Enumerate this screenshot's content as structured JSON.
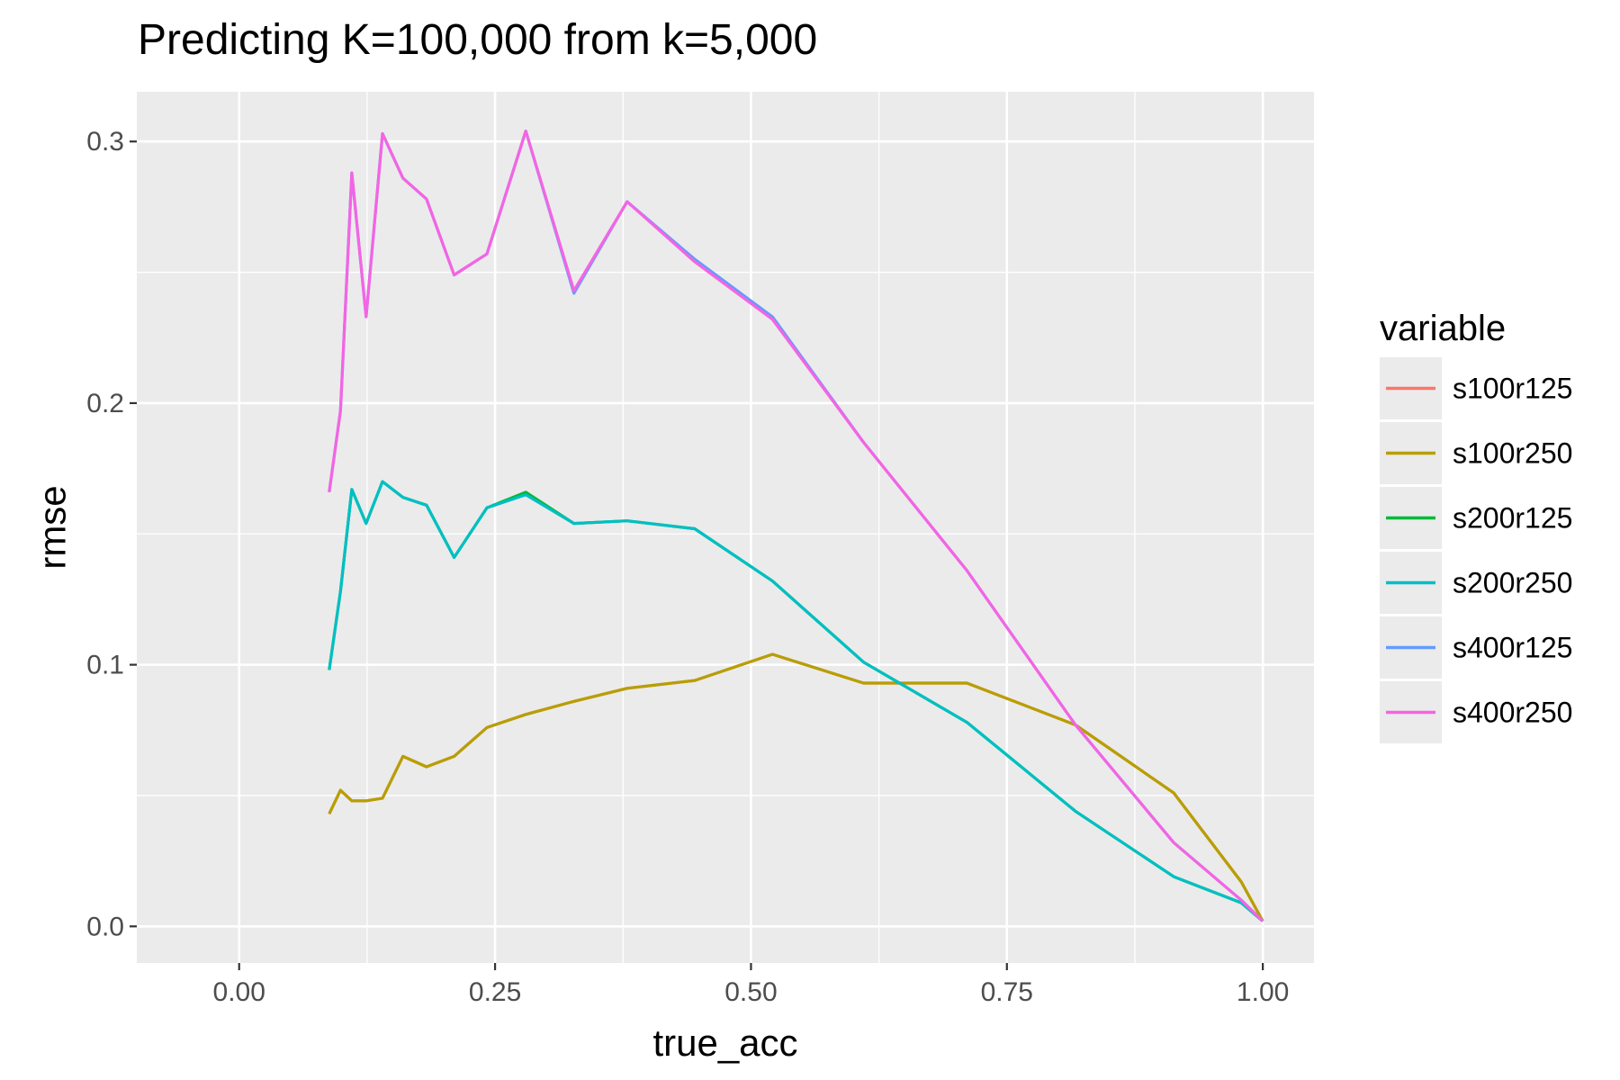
{
  "chart_data": {
    "type": "line",
    "title": "Predicting K=100,000 from k=5,000",
    "xlabel": "true_acc",
    "ylabel": "rmse",
    "xlim": [
      -0.1,
      1.05
    ],
    "ylim": [
      -0.014,
      0.319
    ],
    "x_ticks": [
      0.0,
      0.25,
      0.5,
      0.75,
      1.0
    ],
    "x_tick_labels": [
      "0.00",
      "0.25",
      "0.50",
      "0.75",
      "1.00"
    ],
    "y_ticks": [
      0.0,
      0.1,
      0.2,
      0.3
    ],
    "y_tick_labels": [
      "0.0",
      "0.1",
      "0.2",
      "0.3"
    ],
    "grid": true,
    "legend": {
      "title": "variable",
      "position": "right"
    },
    "series": [
      {
        "name": "s100r125",
        "color": "#F8766D",
        "x": [
          0.088,
          0.099,
          0.11,
          0.124,
          0.14,
          0.16,
          0.183,
          0.21,
          0.242,
          0.28,
          0.327,
          0.379,
          0.445,
          0.521,
          0.61,
          0.711,
          0.817,
          0.913,
          0.979,
          1.0
        ],
        "y": [
          0.043,
          0.052,
          0.048,
          0.048,
          0.049,
          0.065,
          0.061,
          0.065,
          0.076,
          0.081,
          0.086,
          0.091,
          0.094,
          0.104,
          0.093,
          0.093,
          0.077,
          0.051,
          0.017,
          0.002
        ]
      },
      {
        "name": "s100r250",
        "color": "#B79F00",
        "x": [
          0.088,
          0.099,
          0.11,
          0.124,
          0.14,
          0.16,
          0.183,
          0.21,
          0.242,
          0.28,
          0.327,
          0.379,
          0.445,
          0.521,
          0.61,
          0.711,
          0.817,
          0.913,
          0.979,
          1.0
        ],
        "y": [
          0.043,
          0.052,
          0.048,
          0.048,
          0.049,
          0.065,
          0.061,
          0.065,
          0.076,
          0.081,
          0.086,
          0.091,
          0.094,
          0.104,
          0.093,
          0.093,
          0.077,
          0.051,
          0.017,
          0.002
        ]
      },
      {
        "name": "s200r125",
        "color": "#00BA38",
        "x": [
          0.088,
          0.099,
          0.11,
          0.124,
          0.14,
          0.16,
          0.183,
          0.21,
          0.242,
          0.28,
          0.327,
          0.379,
          0.445,
          0.521,
          0.61,
          0.711,
          0.817,
          0.913,
          0.979,
          1.0
        ],
        "y": [
          0.098,
          0.128,
          0.167,
          0.154,
          0.17,
          0.164,
          0.161,
          0.141,
          0.16,
          0.166,
          0.154,
          0.155,
          0.152,
          0.132,
          0.101,
          0.078,
          0.044,
          0.019,
          0.009,
          0.002
        ]
      },
      {
        "name": "s200r250",
        "color": "#00BFC4",
        "x": [
          0.088,
          0.099,
          0.11,
          0.124,
          0.14,
          0.16,
          0.183,
          0.21,
          0.242,
          0.28,
          0.327,
          0.379,
          0.445,
          0.521,
          0.61,
          0.711,
          0.817,
          0.913,
          0.979,
          1.0
        ],
        "y": [
          0.098,
          0.128,
          0.167,
          0.154,
          0.17,
          0.164,
          0.161,
          0.141,
          0.16,
          0.165,
          0.154,
          0.155,
          0.152,
          0.132,
          0.101,
          0.078,
          0.044,
          0.019,
          0.009,
          0.002
        ]
      },
      {
        "name": "s400r125",
        "color": "#619CFF",
        "x": [
          0.088,
          0.099,
          0.11,
          0.124,
          0.14,
          0.16,
          0.183,
          0.21,
          0.242,
          0.28,
          0.327,
          0.379,
          0.445,
          0.521,
          0.61,
          0.711,
          0.817,
          0.913,
          0.979,
          1.0
        ],
        "y": [
          0.166,
          0.197,
          0.288,
          0.233,
          0.303,
          0.286,
          0.278,
          0.249,
          0.257,
          0.304,
          0.242,
          0.277,
          0.255,
          0.233,
          0.185,
          0.136,
          0.077,
          0.032,
          0.01,
          0.002
        ]
      },
      {
        "name": "s400r250",
        "color": "#F564E3",
        "x": [
          0.088,
          0.099,
          0.11,
          0.124,
          0.14,
          0.16,
          0.183,
          0.21,
          0.242,
          0.28,
          0.327,
          0.379,
          0.445,
          0.521,
          0.61,
          0.711,
          0.817,
          0.913,
          0.979,
          1.0
        ],
        "y": [
          0.166,
          0.197,
          0.288,
          0.233,
          0.303,
          0.286,
          0.278,
          0.249,
          0.257,
          0.304,
          0.243,
          0.277,
          0.254,
          0.232,
          0.185,
          0.136,
          0.077,
          0.032,
          0.01,
          0.002
        ]
      }
    ]
  }
}
